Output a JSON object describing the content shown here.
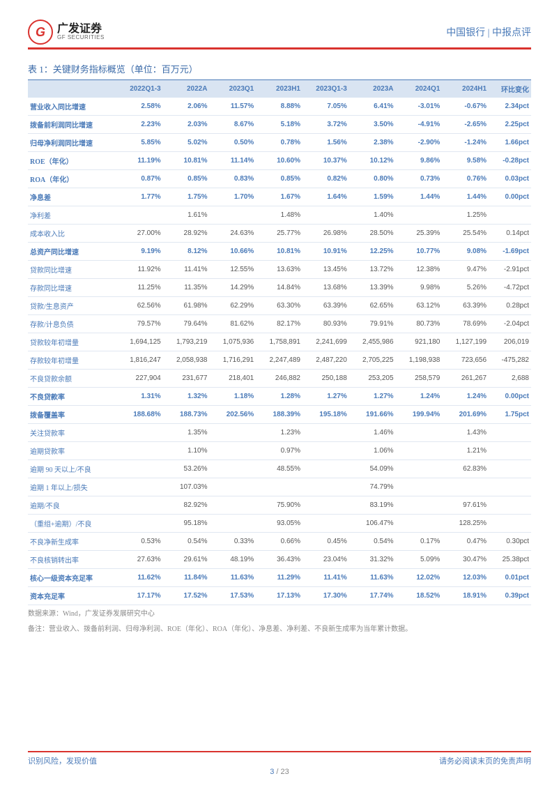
{
  "header": {
    "logo_cn": "广发证券",
    "logo_en": "GF SECURITIES",
    "logo_mark": "G",
    "right": "中国银行 | 中报点评"
  },
  "table": {
    "title": "表 1：关键财务指标概览（单位：百万元）",
    "columns": [
      "",
      "2022Q1-3",
      "2022A",
      "2023Q1",
      "2023H1",
      "2023Q1-3",
      "2023A",
      "2024Q1",
      "2024H1",
      "环比变化"
    ],
    "rows": [
      {
        "bold": true,
        "cells": [
          "营业收入同比增速",
          "2.58%",
          "2.06%",
          "11.57%",
          "8.88%",
          "7.05%",
          "6.41%",
          "-3.01%",
          "-0.67%",
          "2.34pct"
        ]
      },
      {
        "bold": true,
        "cells": [
          "拨备前利润同比增速",
          "2.23%",
          "2.03%",
          "8.67%",
          "5.18%",
          "3.72%",
          "3.50%",
          "-4.91%",
          "-2.65%",
          "2.25pct"
        ]
      },
      {
        "bold": true,
        "cells": [
          "归母净利润同比增速",
          "5.85%",
          "5.02%",
          "0.50%",
          "0.78%",
          "1.56%",
          "2.38%",
          "-2.90%",
          "-1.24%",
          "1.66pct"
        ]
      },
      {
        "bold": true,
        "cells": [
          "ROE（年化）",
          "11.19%",
          "10.81%",
          "11.14%",
          "10.60%",
          "10.37%",
          "10.12%",
          "9.86%",
          "9.58%",
          "-0.28pct"
        ]
      },
      {
        "bold": true,
        "cells": [
          "ROA（年化）",
          "0.87%",
          "0.85%",
          "0.83%",
          "0.85%",
          "0.82%",
          "0.80%",
          "0.73%",
          "0.76%",
          "0.03pct"
        ]
      },
      {
        "bold": true,
        "cells": [
          "净息差",
          "1.77%",
          "1.75%",
          "1.70%",
          "1.67%",
          "1.64%",
          "1.59%",
          "1.44%",
          "1.44%",
          "0.00pct"
        ]
      },
      {
        "bold": false,
        "cells": [
          "净利差",
          "",
          "1.61%",
          "",
          "1.48%",
          "",
          "1.40%",
          "",
          "1.25%",
          ""
        ]
      },
      {
        "bold": false,
        "cells": [
          "成本收入比",
          "27.00%",
          "28.92%",
          "24.63%",
          "25.77%",
          "26.98%",
          "28.50%",
          "25.39%",
          "25.54%",
          "0.14pct"
        ]
      },
      {
        "bold": true,
        "cells": [
          "总资产同比增速",
          "9.19%",
          "8.12%",
          "10.66%",
          "10.81%",
          "10.91%",
          "12.25%",
          "10.77%",
          "9.08%",
          "-1.69pct"
        ]
      },
      {
        "bold": false,
        "cells": [
          "贷款同比增速",
          "11.92%",
          "11.41%",
          "12.55%",
          "13.63%",
          "13.45%",
          "13.72%",
          "12.38%",
          "9.47%",
          "-2.91pct"
        ]
      },
      {
        "bold": false,
        "cells": [
          "存款同比增速",
          "11.25%",
          "11.35%",
          "14.29%",
          "14.84%",
          "13.68%",
          "13.39%",
          "9.98%",
          "5.26%",
          "-4.72pct"
        ]
      },
      {
        "bold": false,
        "cells": [
          "贷款/生息资产",
          "62.56%",
          "61.98%",
          "62.29%",
          "63.30%",
          "63.39%",
          "62.65%",
          "63.12%",
          "63.39%",
          "0.28pct"
        ]
      },
      {
        "bold": false,
        "cells": [
          "存款/计息负债",
          "79.57%",
          "79.64%",
          "81.62%",
          "82.17%",
          "80.93%",
          "79.91%",
          "80.73%",
          "78.69%",
          "-2.04pct"
        ]
      },
      {
        "bold": false,
        "cells": [
          "贷款较年初增量",
          "1,694,125",
          "1,793,219",
          "1,075,936",
          "1,758,891",
          "2,241,699",
          "2,455,986",
          "921,180",
          "1,127,199",
          "206,019"
        ]
      },
      {
        "bold": false,
        "cells": [
          "存款较年初增量",
          "1,816,247",
          "2,058,938",
          "1,716,291",
          "2,247,489",
          "2,487,220",
          "2,705,225",
          "1,198,938",
          "723,656",
          "-475,282"
        ]
      },
      {
        "bold": false,
        "cells": [
          "不良贷款余额",
          "227,904",
          "231,677",
          "218,401",
          "246,882",
          "250,188",
          "253,205",
          "258,579",
          "261,267",
          "2,688"
        ]
      },
      {
        "bold": true,
        "cells": [
          "不良贷款率",
          "1.31%",
          "1.32%",
          "1.18%",
          "1.28%",
          "1.27%",
          "1.27%",
          "1.24%",
          "1.24%",
          "0.00pct"
        ]
      },
      {
        "bold": true,
        "cells": [
          "拨备覆盖率",
          "188.68%",
          "188.73%",
          "202.56%",
          "188.39%",
          "195.18%",
          "191.66%",
          "199.94%",
          "201.69%",
          "1.75pct"
        ]
      },
      {
        "bold": false,
        "cells": [
          "关注贷款率",
          "",
          "1.35%",
          "",
          "1.23%",
          "",
          "1.46%",
          "",
          "1.43%",
          ""
        ]
      },
      {
        "bold": false,
        "cells": [
          "逾期贷款率",
          "",
          "1.10%",
          "",
          "0.97%",
          "",
          "1.06%",
          "",
          "1.21%",
          ""
        ]
      },
      {
        "bold": false,
        "cells": [
          "逾期 90 天以上/不良",
          "",
          "53.26%",
          "",
          "48.55%",
          "",
          "54.09%",
          "",
          "62.83%",
          ""
        ]
      },
      {
        "bold": false,
        "cells": [
          "逾期 1 年以上/损失",
          "",
          "107.03%",
          "",
          "",
          "",
          "74.79%",
          "",
          "",
          ""
        ]
      },
      {
        "bold": false,
        "cells": [
          "逾期/不良",
          "",
          "82.92%",
          "",
          "75.90%",
          "",
          "83.19%",
          "",
          "97.61%",
          ""
        ]
      },
      {
        "bold": false,
        "cells": [
          "（重组+逾期）/不良",
          "",
          "95.18%",
          "",
          "93.05%",
          "",
          "106.47%",
          "",
          "128.25%",
          ""
        ]
      },
      {
        "bold": false,
        "cells": [
          "不良净新生成率",
          "0.53%",
          "0.54%",
          "0.33%",
          "0.66%",
          "0.45%",
          "0.54%",
          "0.17%",
          "0.47%",
          "0.30pct"
        ]
      },
      {
        "bold": false,
        "cells": [
          "不良核销转出率",
          "27.63%",
          "29.61%",
          "48.19%",
          "36.43%",
          "23.04%",
          "31.32%",
          "5.09%",
          "30.47%",
          "25.38pct"
        ]
      },
      {
        "bold": true,
        "cells": [
          "核心一级资本充足率",
          "11.62%",
          "11.84%",
          "11.63%",
          "11.29%",
          "11.41%",
          "11.63%",
          "12.02%",
          "12.03%",
          "0.01pct"
        ]
      },
      {
        "bold": true,
        "cells": [
          "资本充足率",
          "17.17%",
          "17.52%",
          "17.53%",
          "17.13%",
          "17.30%",
          "17.74%",
          "18.52%",
          "18.91%",
          "0.39pct"
        ]
      }
    ],
    "source": "数据来源：Wind，广发证券发展研究中心",
    "note": "备注：营业收入、拨备前利润、归母净利润、ROE（年化）、ROA（年化）、净息差、净利差、不良新生成率为当年累计数据。"
  },
  "footer": {
    "left": "识别风险，发现价值",
    "right": "请务必阅读末页的免责声明",
    "page_current": "3",
    "page_sep": " / ",
    "page_total": "23"
  },
  "colors": {
    "brand_red": "#d9322e",
    "brand_blue": "#4a7ab8",
    "header_bg": "#d9e4f2",
    "row_border": "#e0e7f1",
    "text": "#555",
    "note": "#888"
  }
}
